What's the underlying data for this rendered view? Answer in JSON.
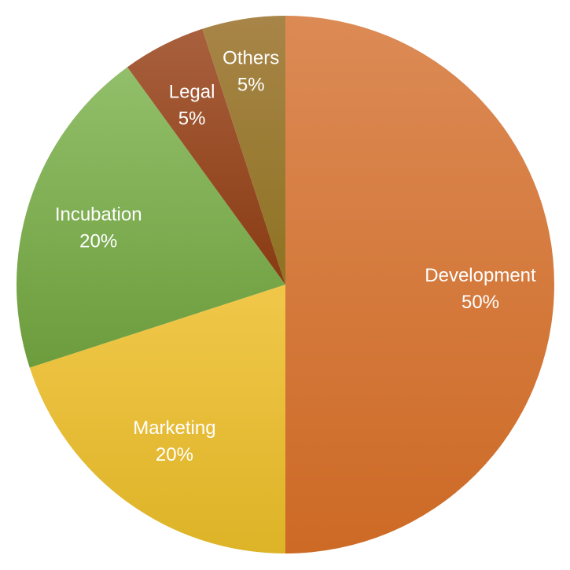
{
  "chart_data": {
    "type": "pie",
    "categories": [
      "Development",
      "Marketing",
      "Incubation",
      "Legal",
      "Others"
    ],
    "values": [
      50,
      20,
      20,
      5,
      5
    ],
    "labels": [
      {
        "name": "Development",
        "pct": "50%"
      },
      {
        "name": "Marketing",
        "pct": "20%"
      },
      {
        "name": "Incubation",
        "pct": "20%"
      },
      {
        "name": "Legal",
        "pct": "5%"
      },
      {
        "name": "Others",
        "pct": "5%"
      }
    ],
    "colors": [
      [
        "#dc8a55",
        "#cd6a25"
      ],
      [
        "#f1c74a",
        "#ddb327"
      ],
      [
        "#92bf6a",
        "#6c9c3c"
      ],
      [
        "#a9603d",
        "#883b12"
      ],
      [
        "#a88548",
        "#8d7322"
      ]
    ],
    "start_angle_deg": 0,
    "direction": "clockwise",
    "legend": "none"
  }
}
